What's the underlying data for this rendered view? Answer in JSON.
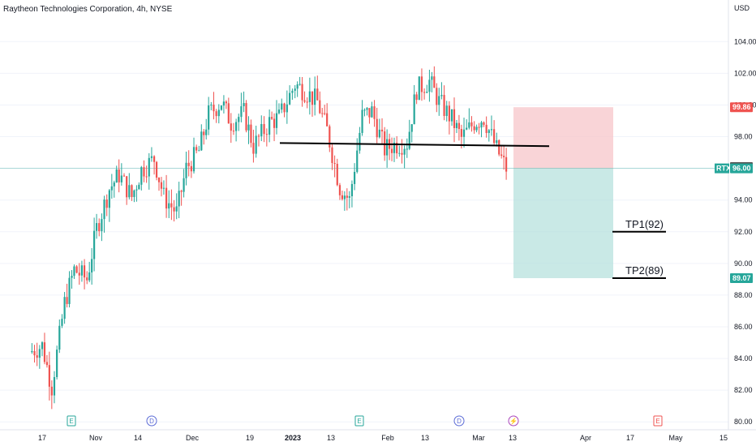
{
  "header": {
    "title": "Raytheon Technologies Corporation, 4h, NYSE"
  },
  "chart_data": {
    "type": "candlestick",
    "title": "Raytheon Technologies Corporation, 4h, NYSE",
    "currency": "USD",
    "ylim": [
      79.5,
      105.5
    ],
    "y_ticks": [
      "80.00",
      "82.00",
      "84.00",
      "86.00",
      "88.00",
      "90.00",
      "92.00",
      "94.00",
      "96.00",
      "98.00",
      "100.00",
      "102.00",
      "104.00"
    ],
    "x_ticks": [
      "17",
      "Nov",
      "14",
      "Dec",
      "19",
      "2023",
      "13",
      "Feb",
      "13",
      "Mar",
      "13",
      "Apr",
      "17",
      "May",
      "15"
    ],
    "colors": {
      "up": "#26a69a",
      "down": "#ef5350",
      "stop": "#f7c6c9",
      "target": "#b2dfdb"
    },
    "series": [
      {
        "x": "Oct 13",
        "close": 84.4
      },
      {
        "x": "Oct 17",
        "close": 84.8
      },
      {
        "x": "Oct 20",
        "close": 82.2
      },
      {
        "x": "Oct 24",
        "close": 87.5
      },
      {
        "x": "Oct 27",
        "close": 89.6
      },
      {
        "x": "Oct 31",
        "close": 89.0
      },
      {
        "x": "Nov 3",
        "close": 92.2
      },
      {
        "x": "Nov 7",
        "close": 94.7
      },
      {
        "x": "Nov 10",
        "close": 95.6
      },
      {
        "x": "Nov 14",
        "close": 94.2
      },
      {
        "x": "Nov 17",
        "close": 95.9
      },
      {
        "x": "Nov 21",
        "close": 96.6
      },
      {
        "x": "Nov 24",
        "close": 94.2
      },
      {
        "x": "Nov 28",
        "close": 93.2
      },
      {
        "x": "Dec 1",
        "close": 96.0
      },
      {
        "x": "Dec 5",
        "close": 97.1
      },
      {
        "x": "Dec 8",
        "close": 99.4
      },
      {
        "x": "Dec 12",
        "close": 100.2
      },
      {
        "x": "Dec 15",
        "close": 98.9
      },
      {
        "x": "Dec 19",
        "close": 99.5
      },
      {
        "x": "Dec 22",
        "close": 97.4
      },
      {
        "x": "Dec 27",
        "close": 98.9
      },
      {
        "x": "Dec 30",
        "close": 99.2
      },
      {
        "x": "Jan 4",
        "close": 101.3
      },
      {
        "x": "Jan 7",
        "close": 100.9
      },
      {
        "x": "Jan 11",
        "close": 100.2
      },
      {
        "x": "Jan 14",
        "close": 98.4
      },
      {
        "x": "Jan 18",
        "close": 94.8
      },
      {
        "x": "Jan 21",
        "close": 94.0
      },
      {
        "x": "Jan 25",
        "close": 99.3
      },
      {
        "x": "Jan 28",
        "close": 99.6
      },
      {
        "x": "Feb 1",
        "close": 97.2
      },
      {
        "x": "Feb 4",
        "close": 97.5
      },
      {
        "x": "Feb 8",
        "close": 97.6
      },
      {
        "x": "Feb 11",
        "close": 101.0
      },
      {
        "x": "Feb 15",
        "close": 101.5
      },
      {
        "x": "Feb 18",
        "close": 100.2
      },
      {
        "x": "Feb 22",
        "close": 99.1
      },
      {
        "x": "Feb 25",
        "close": 97.9
      },
      {
        "x": "Mar 1",
        "close": 98.9
      },
      {
        "x": "Mar 4",
        "close": 99.2
      },
      {
        "x": "Mar 8",
        "close": 97.2
      },
      {
        "x": "Mar 11",
        "close": 96.0
      }
    ],
    "horizontal_lines": [
      {
        "label": "",
        "price_from": 97.6,
        "price_to": 97.4
      },
      {
        "label": "TP1(92)",
        "price": 92.0
      },
      {
        "label": "TP2(89)",
        "price": 89.07
      }
    ],
    "position": {
      "entry": 96.0,
      "stop": 99.86,
      "target": 89.07
    },
    "price_tags": [
      {
        "label": "99.86",
        "price": 99.86,
        "color": "#ef5350"
      },
      {
        "label": "96.08",
        "price": 96.08,
        "color": "#555555"
      },
      {
        "label": "96.00",
        "price": 96.0,
        "color": "#26a69a",
        "symbol": "RTX"
      },
      {
        "label": "89.07",
        "price": 89.07,
        "color": "#26a69a"
      }
    ],
    "events": [
      {
        "letter": "E",
        "x": "Oct 31",
        "color": "#26a69a"
      },
      {
        "letter": "D",
        "x": "Nov 18",
        "color": "#5b6bd6"
      },
      {
        "letter": "E",
        "x": "Jan 24",
        "color": "#26a69a"
      },
      {
        "letter": "D",
        "x": "Feb 17",
        "color": "#5b6bd6"
      },
      {
        "letter": "⚡",
        "x": "Mar 13",
        "color": "#ab47bc"
      },
      {
        "letter": "E",
        "x": "Apr 25",
        "color": "#ef5350"
      }
    ]
  }
}
